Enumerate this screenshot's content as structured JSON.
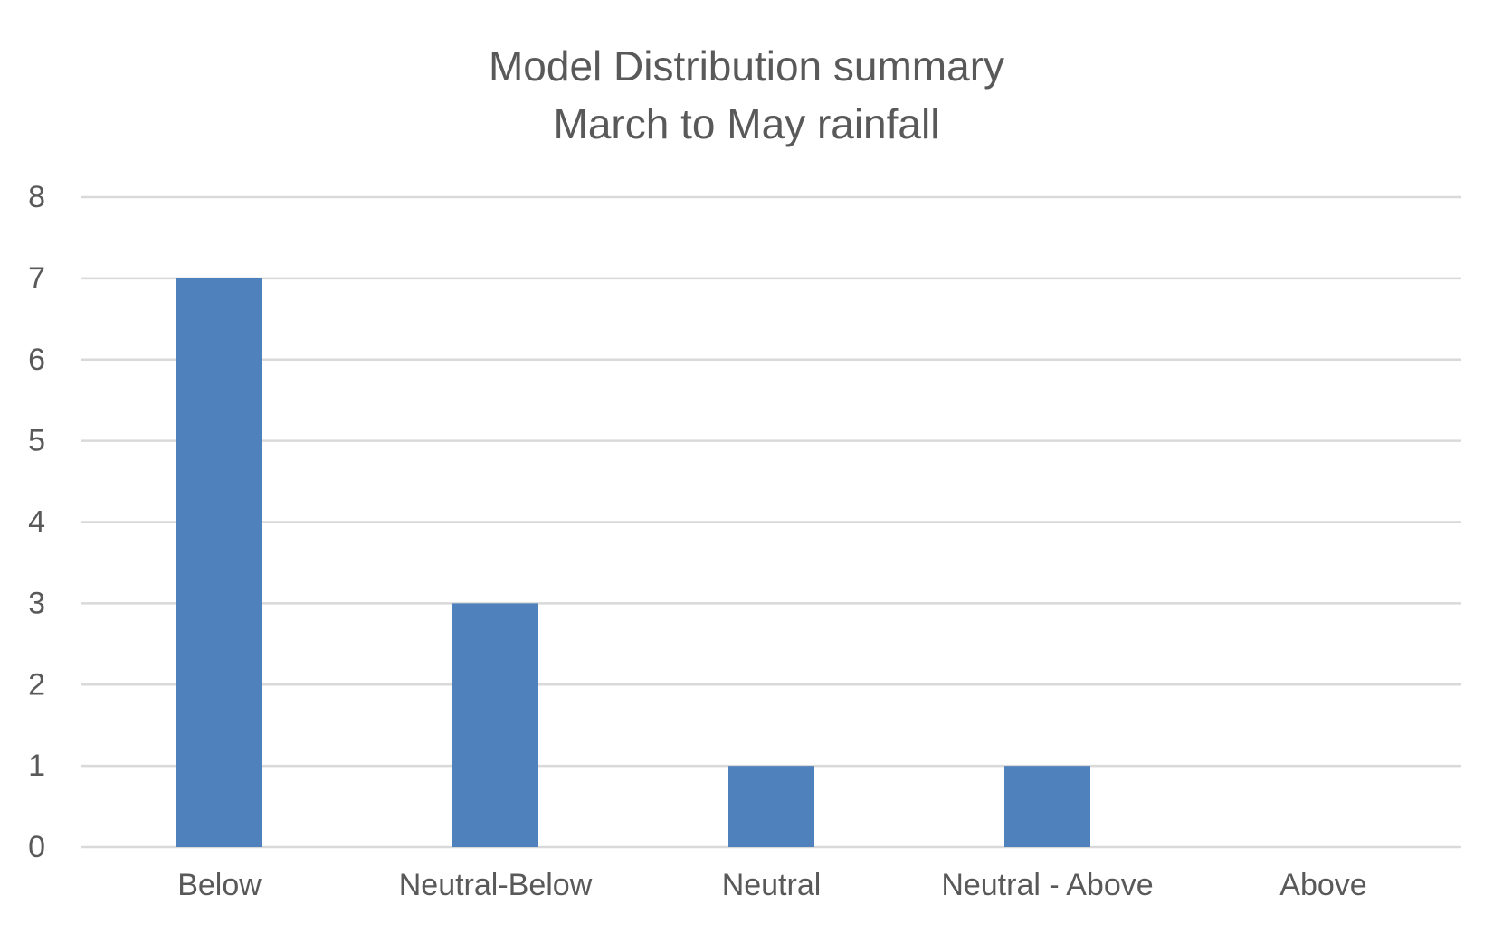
{
  "chart_data": {
    "type": "bar",
    "title": "Model Distribution summary",
    "subtitle": "March to May rainfall",
    "xlabel": "",
    "ylabel": "",
    "categories": [
      "Below",
      "Neutral-Below",
      "Neutral",
      "Neutral - Above",
      "Above"
    ],
    "values": [
      7,
      3,
      1,
      1,
      0
    ],
    "ylim": [
      0,
      8
    ],
    "yticks": [
      0,
      1,
      2,
      3,
      4,
      5,
      6,
      7,
      8
    ],
    "grid": true,
    "legend": "none",
    "colors": {
      "bar": "#4F81BD",
      "grid": "#D9D9D9",
      "text": "#595959"
    }
  }
}
